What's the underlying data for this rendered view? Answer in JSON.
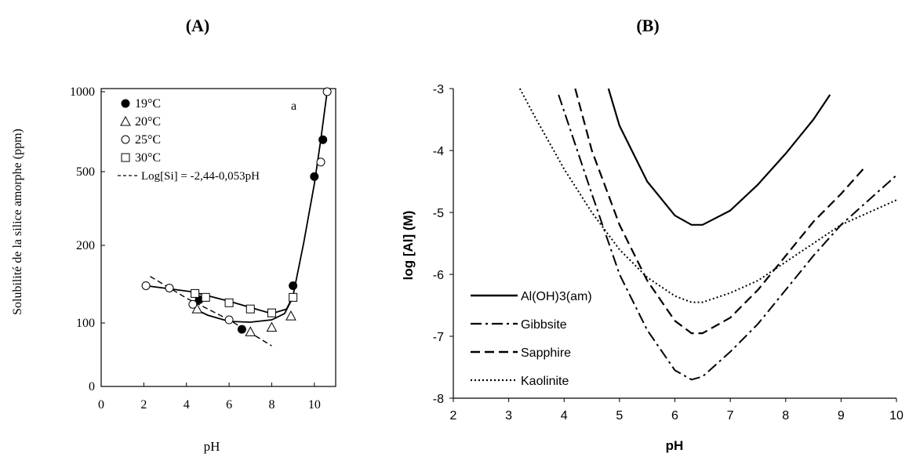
{
  "panels": {
    "a_label": "(A)",
    "b_label": "(B)"
  },
  "chart_data": [
    {
      "id": "A",
      "type": "scatter",
      "panel_letter": "a",
      "xlabel": "pH",
      "ylabel": "Solubilité de la silice amorphe (ppm)",
      "xlim": [
        0,
        11
      ],
      "ylim": [
        0,
        1000
      ],
      "yscale": "log-like",
      "xticks": [
        "0",
        "2",
        "4",
        "6",
        "8",
        "10"
      ],
      "yticks": [
        "0",
        "100",
        "200",
        "500",
        "1000"
      ],
      "legend": [
        {
          "marker": "filled-circle",
          "label": "19°C"
        },
        {
          "marker": "triangle",
          "label": "20°C"
        },
        {
          "marker": "open-circle",
          "label": "25°C"
        },
        {
          "marker": "square",
          "label": "30°C"
        },
        {
          "marker": "dashed-line",
          "label": "Log[Si] = -2,44-0,053pH"
        }
      ],
      "series": [
        {
          "name": "19°C",
          "marker": "filled-circle",
          "points": [
            [
              4.6,
              130
            ],
            [
              6.6,
              90
            ],
            [
              9.0,
              148
            ],
            [
              10.0,
              480
            ],
            [
              10.4,
              700
            ]
          ]
        },
        {
          "name": "20°C",
          "marker": "triangle",
          "points": [
            [
              4.5,
              118
            ],
            [
              7.0,
              86
            ],
            [
              8.0,
              93
            ],
            [
              8.9,
              109
            ]
          ]
        },
        {
          "name": "25°C",
          "marker": "open-circle",
          "points": [
            [
              2.1,
              148
            ],
            [
              3.2,
              145
            ],
            [
              4.3,
              124
            ],
            [
              6.0,
              104
            ],
            [
              10.3,
              560
            ],
            [
              10.6,
              1000
            ]
          ]
        },
        {
          "name": "30°C",
          "marker": "square",
          "points": [
            [
              4.4,
              138
            ],
            [
              4.9,
              133
            ],
            [
              6.0,
              126
            ],
            [
              7.0,
              118
            ],
            [
              8.0,
              113
            ],
            [
              9.0,
              133
            ]
          ]
        }
      ],
      "curves": [
        {
          "name": "trend",
          "style": "solid",
          "points": [
            [
              2.1,
              148
            ],
            [
              4.3,
              140
            ],
            [
              6.0,
              128
            ],
            [
              7.0,
              120
            ],
            [
              8.0,
              112
            ],
            [
              8.7,
              118
            ],
            [
              9.0,
              135
            ],
            [
              9.5,
              210
            ],
            [
              10.0,
              450
            ],
            [
              10.3,
              700
            ],
            [
              10.6,
              1000
            ]
          ]
        },
        {
          "name": "trend-25C",
          "style": "solid",
          "points": [
            [
              4.4,
              118
            ],
            [
              5.0,
              110
            ],
            [
              6.0,
              102
            ],
            [
              7.0,
              101
            ],
            [
              8.0,
              104
            ],
            [
              8.6,
              112
            ],
            [
              8.9,
              128
            ]
          ]
        },
        {
          "name": "Log[Si] = -2,44-0,053pH",
          "style": "dashed",
          "points": [
            [
              2.3,
              160
            ],
            [
              4.0,
              132
            ],
            [
              6.0,
              104
            ],
            [
              8.0,
              64
            ]
          ]
        }
      ]
    },
    {
      "id": "B",
      "type": "line",
      "xlabel": "pH",
      "ylabel": "log [Al] (M)",
      "xlim": [
        2,
        10
      ],
      "ylim": [
        -8,
        -3
      ],
      "xticks": [
        "2",
        "3",
        "4",
        "5",
        "6",
        "7",
        "8",
        "9",
        "10"
      ],
      "yticks": [
        "-3",
        "-4",
        "-5",
        "-6",
        "-7",
        "-8"
      ],
      "grid": false,
      "legend_placement": "bottom-left",
      "series": [
        {
          "name": "Al(OH)3(am)",
          "style": "solid",
          "points": [
            [
              4.8,
              -3.0
            ],
            [
              5.0,
              -3.6
            ],
            [
              5.5,
              -4.5
            ],
            [
              6.0,
              -5.05
            ],
            [
              6.3,
              -5.2
            ],
            [
              6.5,
              -5.2
            ],
            [
              7.0,
              -4.97
            ],
            [
              7.5,
              -4.55
            ],
            [
              8.0,
              -4.05
            ],
            [
              8.5,
              -3.5
            ],
            [
              8.8,
              -3.1
            ]
          ]
        },
        {
          "name": "Gibbsite",
          "style": "dash-dot",
          "points": [
            [
              3.9,
              -3.1
            ],
            [
              4.5,
              -4.7
            ],
            [
              5.0,
              -6.0
            ],
            [
              5.5,
              -6.9
            ],
            [
              6.0,
              -7.55
            ],
            [
              6.3,
              -7.7
            ],
            [
              6.5,
              -7.65
            ],
            [
              7.0,
              -7.25
            ],
            [
              7.5,
              -6.8
            ],
            [
              8.0,
              -6.25
            ],
            [
              8.5,
              -5.7
            ],
            [
              9.0,
              -5.2
            ],
            [
              9.5,
              -4.8
            ],
            [
              10.0,
              -4.4
            ]
          ]
        },
        {
          "name": "Sapphire",
          "style": "dashed",
          "points": [
            [
              4.2,
              -3.0
            ],
            [
              4.5,
              -4.0
            ],
            [
              5.0,
              -5.2
            ],
            [
              5.5,
              -6.1
            ],
            [
              6.0,
              -6.75
            ],
            [
              6.3,
              -6.95
            ],
            [
              6.5,
              -6.95
            ],
            [
              7.0,
              -6.7
            ],
            [
              7.5,
              -6.25
            ],
            [
              8.0,
              -5.7
            ],
            [
              8.5,
              -5.15
            ],
            [
              9.0,
              -4.7
            ],
            [
              9.4,
              -4.3
            ]
          ]
        },
        {
          "name": "Kaolinite",
          "style": "dotted",
          "points": [
            [
              3.2,
              -3.0
            ],
            [
              3.5,
              -3.5
            ],
            [
              4.0,
              -4.3
            ],
            [
              4.5,
              -5.0
            ],
            [
              5.0,
              -5.6
            ],
            [
              5.5,
              -6.05
            ],
            [
              6.0,
              -6.35
            ],
            [
              6.3,
              -6.45
            ],
            [
              6.5,
              -6.45
            ],
            [
              7.0,
              -6.3
            ],
            [
              7.5,
              -6.1
            ],
            [
              8.0,
              -5.8
            ],
            [
              8.5,
              -5.5
            ],
            [
              9.0,
              -5.2
            ],
            [
              9.5,
              -5.0
            ],
            [
              10.0,
              -4.8
            ]
          ]
        }
      ]
    }
  ]
}
